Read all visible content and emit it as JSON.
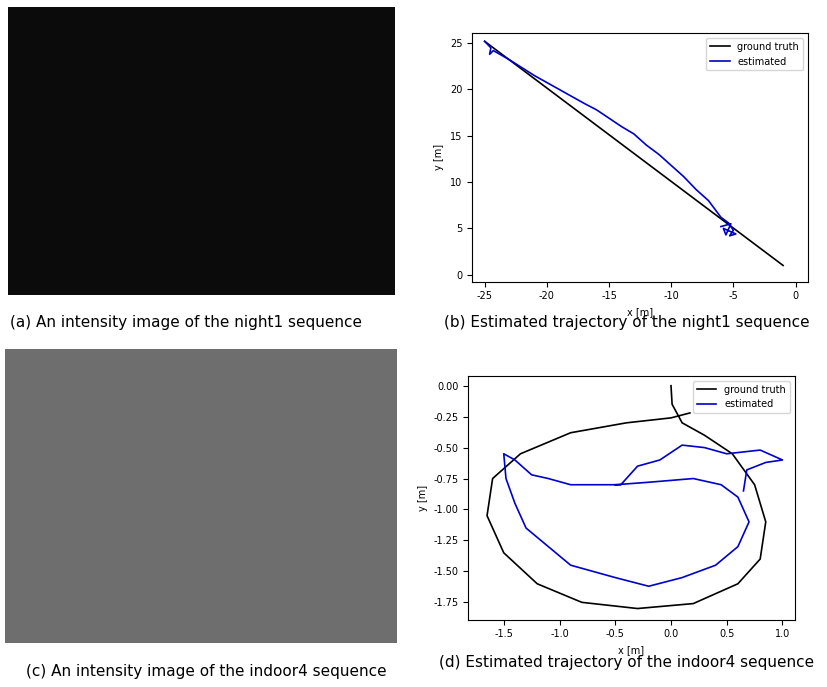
{
  "captions": [
    "(a) An intensity image of the night1 sequence",
    "(b) Estimated trajectory of the night1 sequence",
    "(c) An intensity image of the indoor4 sequence",
    "(d) Estimated trajectory of the indoor4 sequence"
  ],
  "chart_data": [
    {
      "type": "line",
      "x_label": "x [m]",
      "y_label": "y [m]",
      "legend": "upper right",
      "xlim": [
        -26,
        1
      ],
      "ylim": [
        -0.75,
        26.1
      ],
      "xticks": [
        -25,
        -20,
        -15,
        -10,
        -5,
        0
      ],
      "yticks": [
        0,
        5,
        10,
        15,
        20,
        25
      ],
      "series": [
        {
          "name": "ground truth",
          "color": "#000000",
          "x": [
            -1,
            -25
          ],
          "values": [
            1,
            25.2
          ]
        },
        {
          "name": "estimated",
          "color": "#0000cc",
          "x": [
            -25,
            -24.5,
            -24.6,
            -24.3,
            -23,
            -21,
            -19,
            -17,
            -16,
            -14,
            -13,
            -12,
            -11,
            -10,
            -9,
            -8,
            -7,
            -6,
            -5.4,
            -5,
            -5.3,
            -4.8,
            -5.8,
            -5.6,
            -5.2,
            -6
          ],
          "values": [
            25.2,
            24.5,
            23.8,
            24.2,
            23.2,
            21.5,
            20,
            18.5,
            17.8,
            16,
            15.2,
            14,
            13,
            11.8,
            10.6,
            9.2,
            8,
            6.2,
            5.6,
            4.8,
            4.2,
            4.4,
            5.0,
            4.3,
            5.5,
            5.2
          ]
        }
      ]
    },
    {
      "type": "line",
      "x_label": "x [m]",
      "y_label": "y [m]",
      "legend": "upper right",
      "xlim": [
        -1.82,
        1.11
      ],
      "ylim": [
        -1.89,
        0.08
      ],
      "xticks": [
        {
          "value": -1.5,
          "label": "-1.5"
        },
        {
          "value": -1.0,
          "label": "-1.0"
        },
        {
          "value": -0.5,
          "label": "-0.5"
        },
        {
          "value": 0,
          "label": "0.0"
        },
        {
          "value": 0.5,
          "label": "0.5"
        },
        {
          "value": 1.0,
          "label": "1.0"
        }
      ],
      "yticks": [
        {
          "value": 0,
          "label": "0.00"
        },
        {
          "value": -0.25,
          "label": "-0.25"
        },
        {
          "value": -0.5,
          "label": "-0.50"
        },
        {
          "value": -0.75,
          "label": "-0.75"
        },
        {
          "value": -1.0,
          "label": "-1.00"
        },
        {
          "value": -1.25,
          "label": "-1.25"
        },
        {
          "value": -1.5,
          "label": "-1.50"
        },
        {
          "value": -1.75,
          "label": "-1.75"
        }
      ],
      "series": [
        {
          "name": "ground truth",
          "color": "#000000",
          "x": [
            0,
            0.01,
            0.1,
            0.3,
            0.55,
            0.75,
            0.85,
            0.8,
            0.6,
            0.2,
            -0.3,
            -0.8,
            -1.2,
            -1.5,
            -1.65,
            -1.6,
            -1.35,
            -0.9,
            -0.4,
            0.0,
            0.17
          ],
          "values": [
            0,
            -0.15,
            -0.3,
            -0.4,
            -0.55,
            -0.8,
            -1.1,
            -1.4,
            -1.6,
            -1.76,
            -1.8,
            -1.75,
            -1.6,
            -1.35,
            -1.05,
            -0.75,
            -0.55,
            -0.38,
            -0.3,
            -0.26,
            -0.22
          ]
        },
        {
          "name": "estimated",
          "color": "#0000cc",
          "x": [
            0.65,
            0.68,
            0.85,
            1.0,
            0.8,
            0.5,
            0.3,
            0.1,
            -0.1,
            -0.3,
            -0.45,
            -0.9,
            -1.1,
            -1.25,
            -1.4,
            -1.5,
            -1.48,
            -1.4,
            -1.3,
            -1.1,
            -0.9,
            -0.5,
            -0.2,
            0.1,
            0.4,
            0.6,
            0.7,
            0.6,
            0.45,
            0.2,
            -0.2,
            -0.5
          ],
          "values": [
            -0.85,
            -0.68,
            -0.62,
            -0.6,
            -0.52,
            -0.55,
            -0.5,
            -0.48,
            -0.6,
            -0.65,
            -0.8,
            -0.8,
            -0.75,
            -0.72,
            -0.6,
            -0.55,
            -0.75,
            -0.95,
            -1.15,
            -1.3,
            -1.45,
            -1.55,
            -1.62,
            -1.55,
            -1.45,
            -1.3,
            -1.1,
            -0.9,
            -0.8,
            -0.75,
            -0.78,
            -0.8
          ]
        }
      ]
    }
  ]
}
